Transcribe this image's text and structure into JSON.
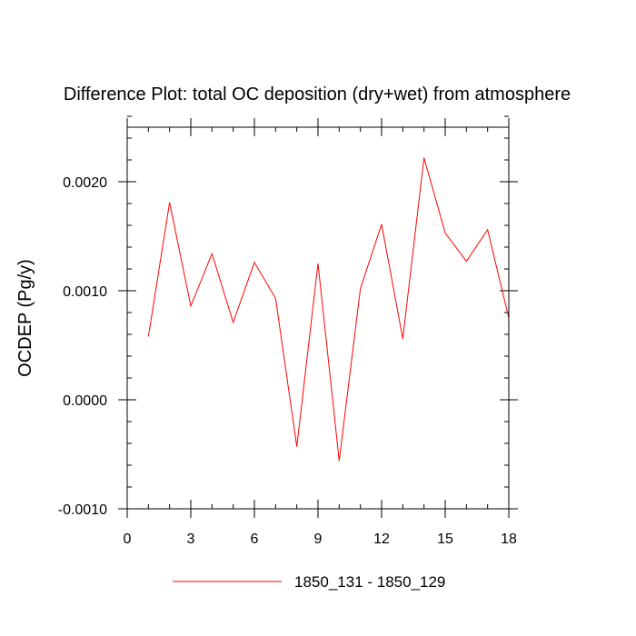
{
  "chart_data": {
    "type": "line",
    "title": "Difference Plot: total OC deposition (dry+wet) from atmosphere",
    "xlabel": "",
    "ylabel": "OCDEP  (Pg/y)",
    "xlim": [
      0,
      18
    ],
    "ylim": [
      -0.001,
      0.0025
    ],
    "x_ticks": [
      0,
      3,
      6,
      9,
      12,
      15,
      18
    ],
    "x_tick_labels": [
      "0",
      "3",
      "6",
      "9",
      "12",
      "15",
      "18"
    ],
    "y_ticks": [
      -0.001,
      0.0,
      0.001,
      0.002
    ],
    "y_tick_labels": [
      "-0.0010",
      "0.0000",
      "0.0010",
      "0.0020"
    ],
    "grid": false,
    "legend_position": "bottom-center",
    "series": [
      {
        "name": "1850_131 - 1850_129",
        "color": "#ff0000",
        "x": [
          1,
          2,
          3,
          4,
          5,
          6,
          7,
          8,
          9,
          10,
          11,
          12,
          13,
          14,
          15,
          16,
          17,
          18
        ],
        "y": [
          0.00058,
          0.00181,
          0.00086,
          0.00134,
          0.00071,
          0.00126,
          0.00093,
          -0.00043,
          0.00125,
          -0.00056,
          0.00102,
          0.00161,
          0.00056,
          0.00222,
          0.00153,
          0.00127,
          0.00156,
          0.00075
        ]
      }
    ]
  }
}
